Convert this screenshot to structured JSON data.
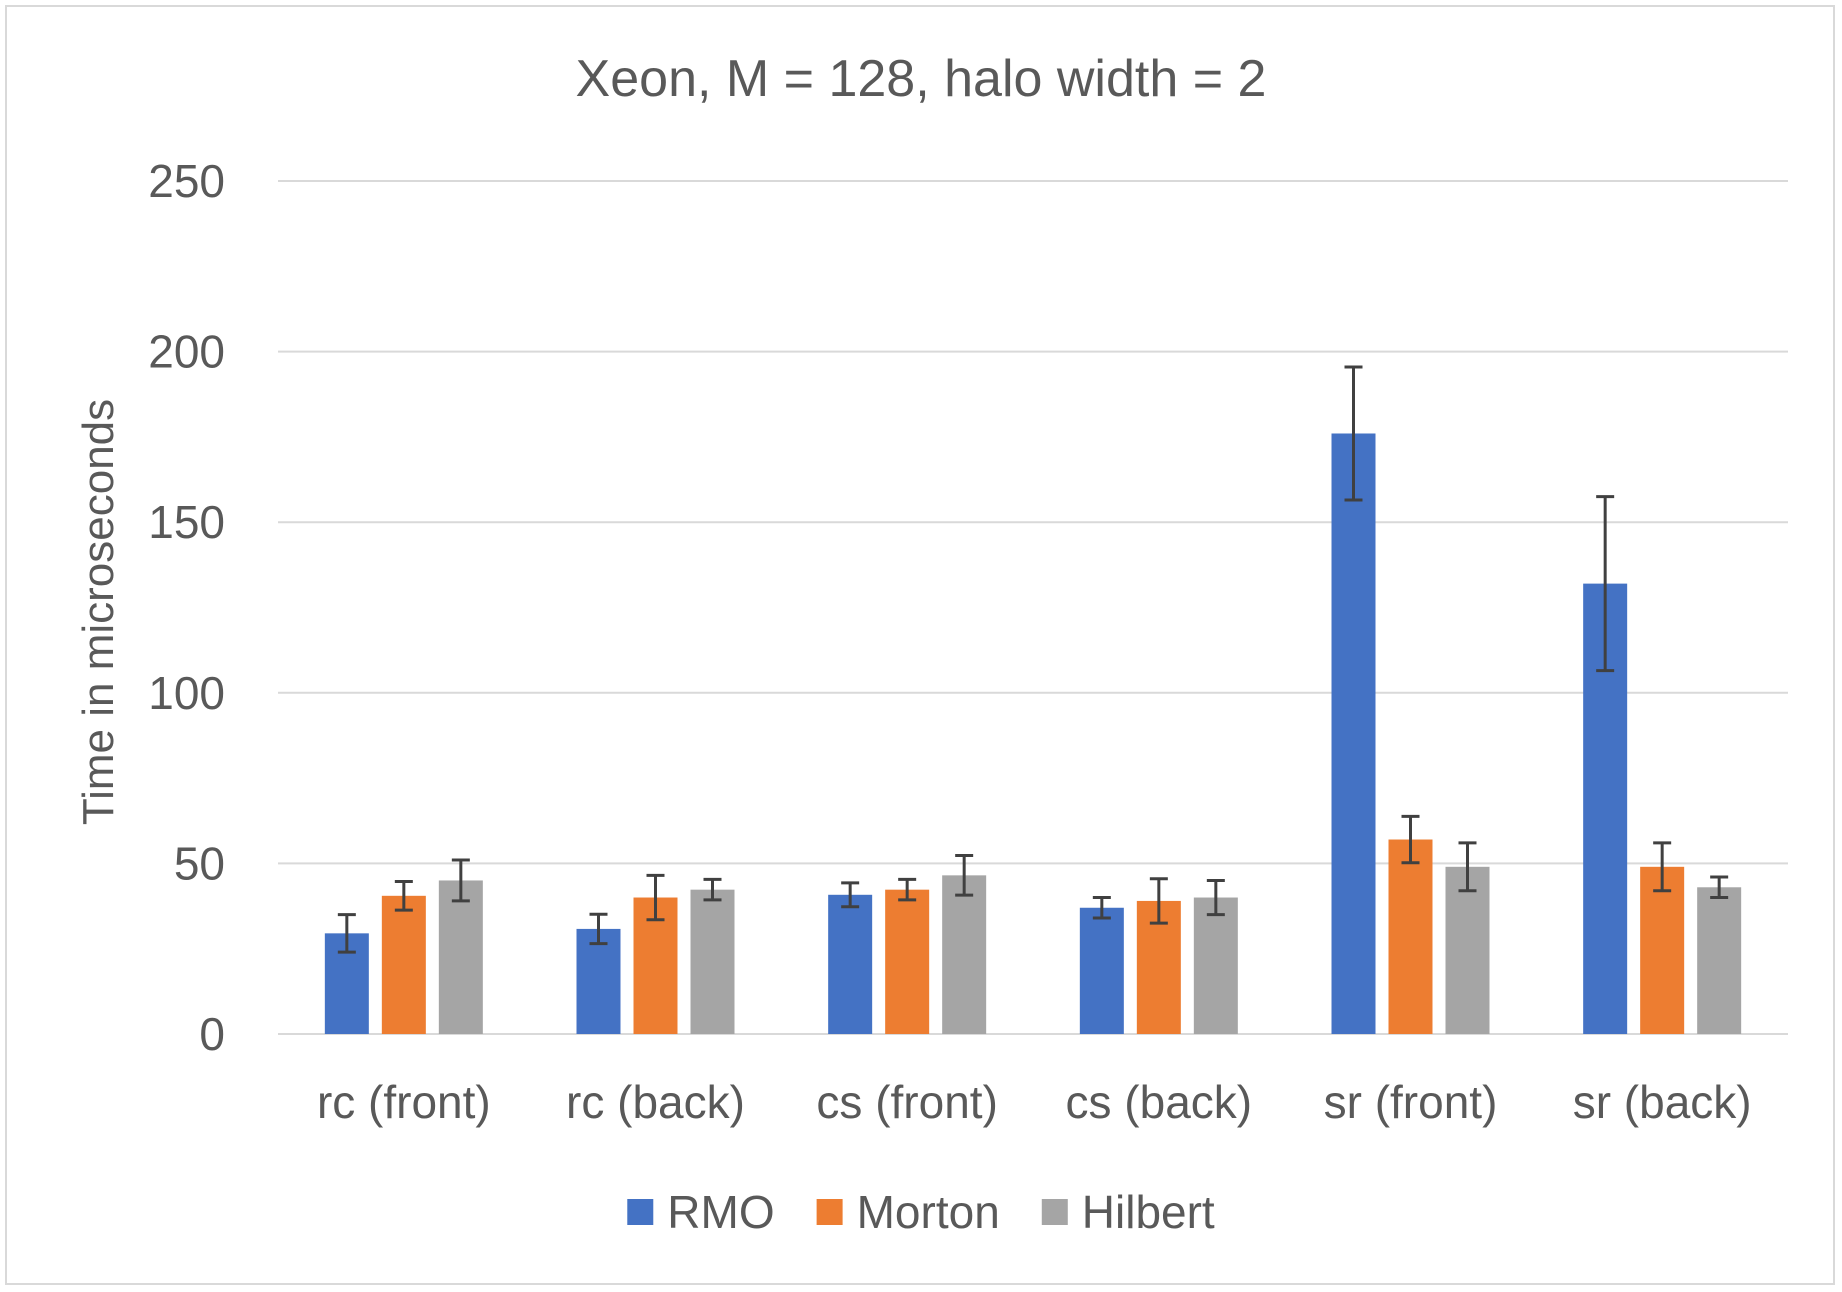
{
  "chart_data": {
    "type": "bar",
    "title": "Xeon, M = 128, halo width = 2",
    "xlabel": "",
    "ylabel": "Time in microseconds",
    "ylim": [
      0,
      250
    ],
    "yticks": [
      0,
      50,
      100,
      150,
      200,
      250
    ],
    "grid": true,
    "legend_position": "bottom",
    "categories": [
      "rc (front)",
      "rc (back)",
      "cs (front)",
      "cs (back)",
      "sr (front)",
      "sr (back)"
    ],
    "series": [
      {
        "name": "RMO",
        "color": "#4472C4",
        "values": [
          29.5,
          30.8,
          40.8,
          37.0,
          176,
          132
        ],
        "error": [
          5.5,
          4.3,
          3.5,
          3.0,
          19.5,
          25.5
        ]
      },
      {
        "name": "Morton",
        "color": "#ED7D31",
        "values": [
          40.5,
          40.0,
          42.3,
          39.0,
          57.0,
          49.0
        ],
        "error": [
          4.2,
          6.5,
          3.0,
          6.5,
          6.8,
          7.0
        ]
      },
      {
        "name": "Hilbert",
        "color": "#A5A5A5",
        "values": [
          45.0,
          42.3,
          46.5,
          40.0,
          49.0,
          43.0
        ],
        "error": [
          6.0,
          3.0,
          5.8,
          5.0,
          7.0,
          3.0
        ]
      }
    ],
    "colors": {
      "gridline": "#d9d9d9",
      "text": "#595959",
      "errorbar": "#404040"
    }
  }
}
